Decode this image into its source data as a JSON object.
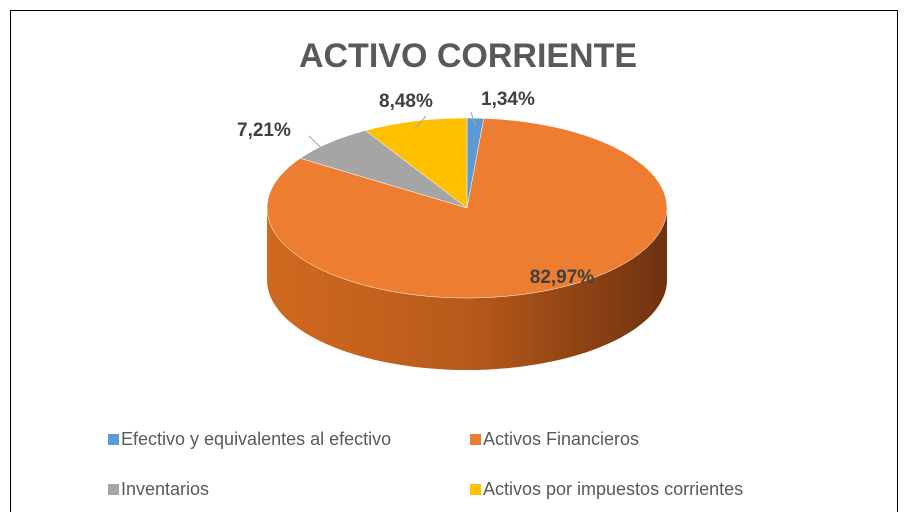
{
  "chart_data": {
    "type": "pie",
    "title": "ACTIVO CORRIENTE",
    "categories": [
      "Efectivo y equivalentes al efectivo",
      "Activos Financieros",
      "Inventarios",
      "Activos por impuestos corrientes"
    ],
    "values": [
      1.34,
      82.97,
      7.21,
      8.48
    ],
    "value_labels": [
      "1,34%",
      "82,97%",
      "7,21%",
      "8,48%"
    ],
    "colors": [
      "#5b9bd5",
      "#ed7d31",
      "#a5a5a5",
      "#ffc000"
    ],
    "legend": "bottom"
  }
}
